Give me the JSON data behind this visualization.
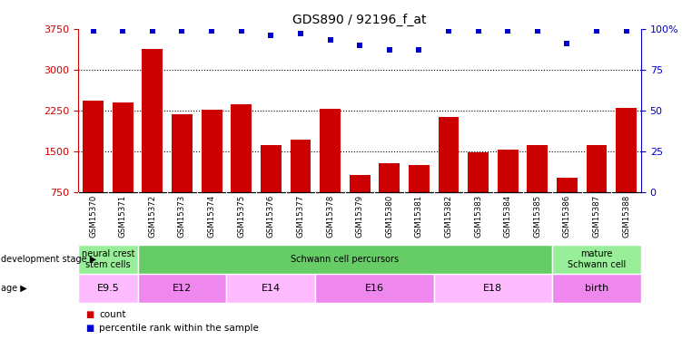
{
  "title": "GDS890 / 92196_f_at",
  "categories": [
    "GSM15370",
    "GSM15371",
    "GSM15372",
    "GSM15373",
    "GSM15374",
    "GSM15375",
    "GSM15376",
    "GSM15377",
    "GSM15378",
    "GSM15379",
    "GSM15380",
    "GSM15381",
    "GSM15382",
    "GSM15383",
    "GSM15384",
    "GSM15385",
    "GSM15386",
    "GSM15387",
    "GSM15388"
  ],
  "counts": [
    2430,
    2400,
    3380,
    2180,
    2260,
    2360,
    1620,
    1720,
    2280,
    1060,
    1280,
    1240,
    2130,
    1480,
    1530,
    1620,
    1010,
    1620,
    2290
  ],
  "percentiles": [
    99,
    99,
    99,
    99,
    99,
    99,
    96,
    97,
    93,
    90,
    87,
    87,
    99,
    99,
    99,
    99,
    91,
    99,
    99
  ],
  "ylim_left": [
    750,
    3750
  ],
  "ylim_right": [
    0,
    100
  ],
  "yticks_left": [
    750,
    1500,
    2250,
    3000,
    3750
  ],
  "yticks_right": [
    0,
    25,
    50,
    75,
    100
  ],
  "bar_color": "#cc0000",
  "dot_color": "#0000cc",
  "dot_marker": "s",
  "dev_stage_groups": [
    {
      "label": "neural crest\nstem cells",
      "start": 0,
      "end": 2,
      "color": "#99ee99"
    },
    {
      "label": "Schwann cell percursors",
      "start": 2,
      "end": 16,
      "color": "#66cc66"
    },
    {
      "label": "mature\nSchwann cell",
      "start": 16,
      "end": 19,
      "color": "#99ee99"
    }
  ],
  "age_groups": [
    {
      "label": "E9.5",
      "start": 0,
      "end": 2,
      "color": "#ffbbff"
    },
    {
      "label": "E12",
      "start": 2,
      "end": 5,
      "color": "#ee88ee"
    },
    {
      "label": "E14",
      "start": 5,
      "end": 8,
      "color": "#ffbbff"
    },
    {
      "label": "E16",
      "start": 8,
      "end": 12,
      "color": "#ee88ee"
    },
    {
      "label": "E18",
      "start": 12,
      "end": 16,
      "color": "#ffbbff"
    },
    {
      "label": "birth",
      "start": 16,
      "end": 19,
      "color": "#ee88ee"
    }
  ],
  "legend_count_label": "count",
  "legend_pct_label": "percentile rank within the sample",
  "dev_stage_label": "development stage",
  "age_label": "age",
  "xlabel_bg_color": "#cccccc"
}
